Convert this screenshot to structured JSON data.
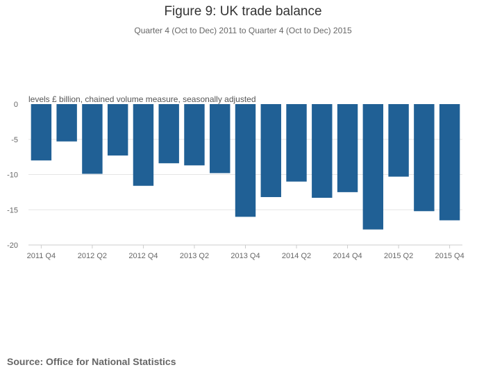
{
  "header": {
    "title": "Figure 9: UK trade balance",
    "subtitle": "Quarter 4 (Oct to Dec) 2011 to Quarter 4 (Oct to Dec) 2015"
  },
  "footer": {
    "source": "Source: Office for National Statistics"
  },
  "colors": {
    "bar": "#206095",
    "gridline": "#e5e5e5",
    "axis": "#cccccc"
  },
  "chart_data": {
    "type": "bar",
    "title": "Figure 9: UK trade balance",
    "subtitle": "Quarter 4 (Oct to Dec) 2011 to Quarter 4 (Oct to Dec) 2015",
    "ylabel": "levels £ billion, chained volume measure, seasonally adjusted",
    "xlabel": "",
    "categories": [
      "2011 Q4",
      "2012 Q1",
      "2012 Q2",
      "2012 Q3",
      "2012 Q4",
      "2013 Q1",
      "2013 Q2",
      "2013 Q3",
      "2013 Q4",
      "2014 Q1",
      "2014 Q2",
      "2014 Q3",
      "2014 Q4",
      "2015 Q1",
      "2015 Q2",
      "2015 Q3",
      "2015 Q4"
    ],
    "tick_labels": [
      "2011 Q4",
      "2012 Q2",
      "2012 Q4",
      "2013 Q2",
      "2013 Q4",
      "2014 Q2",
      "2014 Q4",
      "2015 Q2",
      "2015 Q4"
    ],
    "values": [
      -8.0,
      -5.3,
      -9.9,
      -7.3,
      -11.6,
      -8.4,
      -8.7,
      -9.8,
      -16.0,
      -13.2,
      -11.0,
      -13.3,
      -12.5,
      -17.8,
      -10.3,
      -15.2,
      -16.5
    ],
    "yticks": [
      0,
      -5,
      -10,
      -15,
      -20
    ],
    "ylim": [
      -20,
      0
    ],
    "grid": true,
    "legend": "none"
  }
}
